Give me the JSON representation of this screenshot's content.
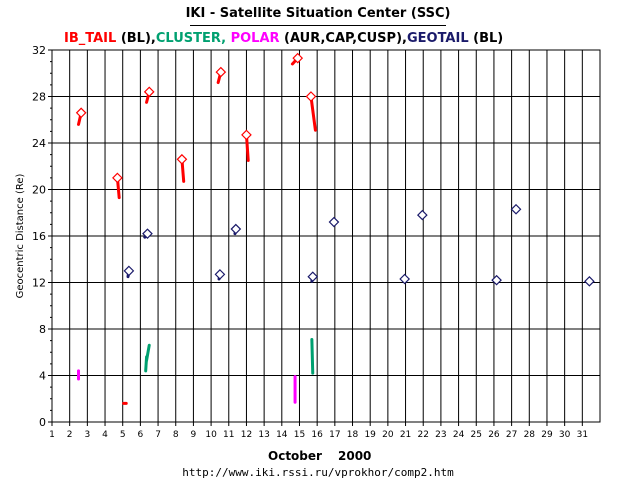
{
  "title": "IKI - Satellite Situation Center (SSC)",
  "legend": [
    {
      "text": "IB_TAIL",
      "color": "#ff0000"
    },
    {
      "text": " (BL),",
      "color": "#000000"
    },
    {
      "text": "CLUSTER,",
      "color": "#00a070"
    },
    {
      "text": " POLAR",
      "color": "#ff00ff"
    },
    {
      "text": " (AUR,CAP,CUSP),",
      "color": "#000000"
    },
    {
      "text": "GEOTAIL",
      "color": "#1a1a6a"
    },
    {
      "text": " (BL)",
      "color": "#000000"
    }
  ],
  "month_label": "October",
  "year_label": "2000",
  "url": "http://www.iki.rssi.ru/vprokhor/comp2.htm",
  "chart_data": {
    "type": "scatter",
    "xlabel": "October 2000",
    "ylabel": "Geocentric Distance (Re)",
    "xlim": [
      1,
      32
    ],
    "ylim": [
      0,
      32
    ],
    "x_ticks": [
      1,
      2,
      3,
      4,
      5,
      6,
      7,
      8,
      9,
      10,
      11,
      12,
      13,
      14,
      15,
      16,
      17,
      18,
      19,
      20,
      21,
      22,
      23,
      24,
      25,
      26,
      27,
      28,
      29,
      30,
      31
    ],
    "y_ticks": [
      0,
      4,
      8,
      12,
      16,
      20,
      24,
      28,
      32
    ],
    "grid": true,
    "series": [
      {
        "name": "IB_TAIL",
        "color": "#ff0000",
        "tracks": [
          {
            "marker": [
              2.65,
              26.6
            ],
            "line": [
              [
                2.65,
                26.6
              ],
              [
                2.5,
                25.6
              ]
            ]
          },
          {
            "marker": [
              4.7,
              21.0
            ],
            "line": [
              [
                4.7,
                21.0
              ],
              [
                4.8,
                19.3
              ]
            ]
          },
          {
            "marker": [
              6.5,
              28.4
            ],
            "line": [
              [
                6.5,
                28.4
              ],
              [
                6.35,
                27.5
              ]
            ]
          },
          {
            "marker": [
              8.35,
              22.6
            ],
            "line": [
              [
                8.35,
                22.6
              ],
              [
                8.45,
                20.7
              ]
            ]
          },
          {
            "marker": [
              10.55,
              30.1
            ],
            "line": [
              [
                10.55,
                30.1
              ],
              [
                10.4,
                29.2
              ]
            ]
          },
          {
            "marker": [
              12.0,
              24.7
            ],
            "line": [
              [
                12.0,
                24.7
              ],
              [
                12.1,
                22.5
              ]
            ]
          },
          {
            "marker": [
              14.9,
              31.3
            ],
            "line": [
              [
                14.9,
                31.3
              ],
              [
                14.6,
                30.8
              ]
            ]
          },
          {
            "marker": [
              15.65,
              28.0
            ],
            "line": [
              [
                15.65,
                28.0
              ],
              [
                15.9,
                25.1
              ]
            ]
          },
          {
            "marker": null,
            "line": [
              [
                5.05,
                1.6
              ],
              [
                5.2,
                1.6
              ]
            ]
          }
        ]
      },
      {
        "name": "CLUSTER",
        "color": "#00a070",
        "tracks": [
          {
            "marker": null,
            "line": [
              [
                6.35,
                5.3
              ],
              [
                6.5,
                6.6
              ]
            ]
          },
          {
            "marker": null,
            "line": [
              [
                6.3,
                4.4
              ],
              [
                6.35,
                5.6
              ]
            ]
          },
          {
            "marker": null,
            "line": [
              [
                15.75,
                4.2
              ],
              [
                15.7,
                7.1
              ]
            ]
          }
        ]
      },
      {
        "name": "POLAR",
        "color": "#ff00ff",
        "tracks": [
          {
            "marker": null,
            "line": [
              [
                2.5,
                3.7
              ],
              [
                2.5,
                4.4
              ]
            ]
          },
          {
            "marker": null,
            "line": [
              [
                14.75,
                1.7
              ],
              [
                14.75,
                3.9
              ]
            ]
          }
        ]
      },
      {
        "name": "GEOTAIL",
        "color": "#1a1a6a",
        "tracks": [
          {
            "marker": [
              6.4,
              16.2
            ],
            "line": [
              [
                6.4,
                16.2
              ],
              [
                6.25,
                15.9
              ]
            ]
          },
          {
            "marker": [
              5.35,
              13.0
            ],
            "line": [
              [
                5.35,
                13.0
              ],
              [
                5.3,
                12.5
              ]
            ]
          },
          {
            "marker": [
              11.4,
              16.6
            ],
            "line": [
              [
                11.4,
                16.6
              ],
              [
                11.35,
                16.2
              ]
            ]
          },
          {
            "marker": [
              10.5,
              12.7
            ],
            "line": [
              [
                10.5,
                12.7
              ],
              [
                10.45,
                12.3
              ]
            ]
          },
          {
            "marker": [
              15.75,
              12.5
            ],
            "line": [
              [
                15.75,
                12.5
              ],
              [
                15.7,
                12.1
              ]
            ]
          },
          {
            "marker": [
              16.95,
              17.2
            ],
            "line": null
          },
          {
            "marker": [
              20.95,
              12.3
            ],
            "line": null
          },
          {
            "marker": [
              21.95,
              17.8
            ],
            "line": null
          },
          {
            "marker": [
              26.15,
              12.2
            ],
            "line": null
          },
          {
            "marker": [
              27.25,
              18.3
            ],
            "line": null
          },
          {
            "marker": [
              31.4,
              12.1
            ],
            "line": null
          }
        ]
      }
    ]
  }
}
